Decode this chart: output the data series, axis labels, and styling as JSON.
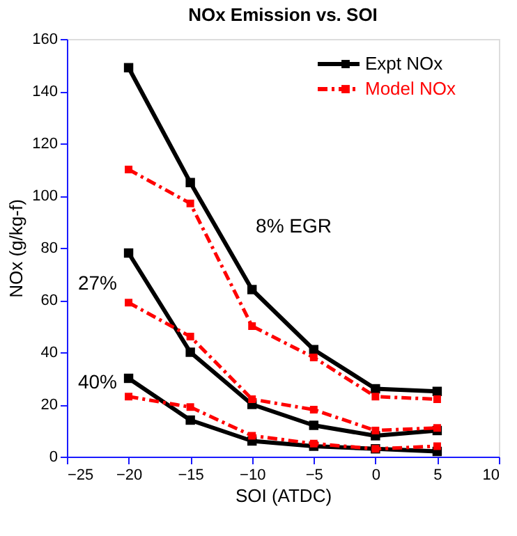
{
  "chart_data": {
    "type": "line",
    "title": "NOx Emission vs. SOI",
    "xlabel": "SOI (ATDC)",
    "ylabel": "NOx (g/kg-f)",
    "x": [
      -20,
      -15,
      -10,
      -5,
      0,
      5
    ],
    "series": [
      {
        "name": "Expt NOx",
        "color": "#000000",
        "line_style": "solid",
        "values": [
          149,
          105,
          64,
          41,
          26,
          25
        ]
      },
      {
        "name": "Model NOx",
        "color": "#ff0000",
        "line_style": "dashed",
        "values": [
          110,
          97,
          50,
          38,
          23,
          22
        ]
      },
      {
        "color": "#000000",
        "line_style": "solid",
        "values": [
          78,
          40,
          20,
          12,
          8,
          10
        ]
      },
      {
        "color": "#ff0000",
        "line_style": "dashed",
        "values": [
          59,
          46,
          22,
          18,
          10,
          11
        ]
      },
      {
        "color": "#000000",
        "line_style": "solid",
        "values": [
          30,
          14,
          6,
          4,
          3,
          2
        ]
      },
      {
        "color": "#ff0000",
        "line_style": "dashed",
        "values": [
          23,
          19,
          8,
          5,
          3,
          4
        ]
      }
    ],
    "annotations": [
      "8% EGR",
      "27%",
      "40%"
    ],
    "xlim": [
      -25,
      10
    ],
    "xticks": [
      -25,
      -20,
      -15,
      -10,
      -5,
      0,
      5,
      10
    ],
    "ylim": [
      0,
      160
    ],
    "yticks": [
      0,
      20,
      40,
      60,
      80,
      100,
      120,
      140,
      160
    ],
    "grid": false,
    "legend": "top right",
    "marker": "square"
  }
}
